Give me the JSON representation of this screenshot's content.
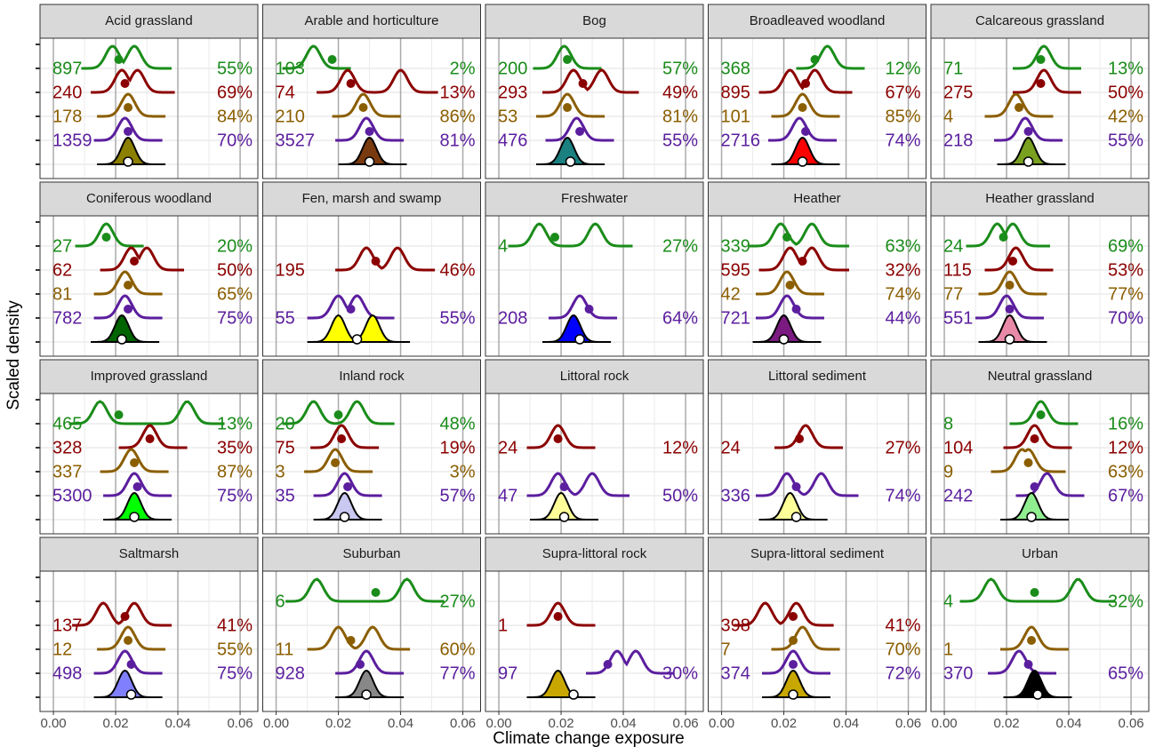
{
  "chart_data": {
    "type": "ridgeline",
    "x_label": "Climate change exposure",
    "y_label": "Scaled density",
    "xlim": [
      -0.0043,
      0.0657
    ],
    "xticks": [
      {
        "value": 0,
        "label": "0.00"
      },
      {
        "value": 0.02,
        "label": "0.02"
      },
      {
        "value": 0.04,
        "label": "0.04"
      },
      {
        "value": 0.06,
        "label": "0.06"
      }
    ],
    "row_colors": [
      "#1a8c1a",
      "#8b0000",
      "#8b5e00",
      "#5b1e9e"
    ],
    "panels": [
      {
        "title": "Acid grassland",
        "fill": "#8b8000",
        "ridges": [
          {
            "n": 897,
            "pct": "55%",
            "point": 0.021,
            "peaks": [
              0.019,
              0.026
            ]
          },
          {
            "n": 240,
            "pct": "69%",
            "point": 0.023,
            "peaks": [
              0.022,
              0.027
            ]
          },
          {
            "n": 178,
            "pct": "84%",
            "point": 0.024,
            "peaks": [
              0.024
            ]
          },
          {
            "n": 1359,
            "pct": "70%",
            "point": 0.024,
            "peaks": [
              0.023
            ]
          }
        ],
        "base": {
          "point": 0.024,
          "peaks": [
            0.024
          ]
        }
      },
      {
        "title": "Arable and horticulture",
        "fill": "#7a3a10",
        "ridges": [
          {
            "n": 103,
            "pct": "2%",
            "point": 0.018,
            "peaks": [
              0.012
            ]
          },
          {
            "n": 74,
            "pct": "13%",
            "point": 0.024,
            "peaks": [
              0.023,
              0.04
            ]
          },
          {
            "n": 210,
            "pct": "86%",
            "point": 0.028,
            "peaks": [
              0.028
            ]
          },
          {
            "n": 3527,
            "pct": "81%",
            "point": 0.03,
            "peaks": [
              0.029
            ]
          }
        ],
        "base": {
          "point": 0.03,
          "peaks": [
            0.03
          ]
        }
      },
      {
        "title": "Bog",
        "fill": "#1a8080",
        "ridges": [
          {
            "n": 200,
            "pct": "57%",
            "point": 0.022,
            "peaks": [
              0.021
            ]
          },
          {
            "n": 293,
            "pct": "49%",
            "point": 0.027,
            "peaks": [
              0.024,
              0.033
            ]
          },
          {
            "n": 53,
            "pct": "81%",
            "point": 0.022,
            "peaks": [
              0.022
            ]
          },
          {
            "n": 476,
            "pct": "55%",
            "point": 0.026,
            "peaks": [
              0.025
            ]
          }
        ],
        "base": {
          "point": 0.023,
          "peaks": [
            0.022
          ]
        }
      },
      {
        "title": "Broadleaved woodland",
        "fill": "#ff0000",
        "ridges": [
          {
            "n": 368,
            "pct": "12%",
            "point": 0.03,
            "peaks": [
              0.034
            ]
          },
          {
            "n": 895,
            "pct": "67%",
            "point": 0.027,
            "peaks": [
              0.022,
              0.03
            ]
          },
          {
            "n": 101,
            "pct": "85%",
            "point": 0.026,
            "peaks": [
              0.026
            ]
          },
          {
            "n": 2716,
            "pct": "74%",
            "point": 0.027,
            "peaks": [
              0.025
            ]
          }
        ],
        "base": {
          "point": 0.026,
          "peaks": [
            0.026
          ]
        }
      },
      {
        "title": "Calcareous grassland",
        "fill": "#7aa020",
        "ridges": [
          {
            "n": 71,
            "pct": "13%",
            "point": 0.031,
            "peaks": [
              0.032
            ]
          },
          {
            "n": 275,
            "pct": "50%",
            "point": 0.031,
            "peaks": [
              0.032
            ]
          },
          {
            "n": 4,
            "pct": "42%",
            "point": 0.024,
            "peaks": [
              0.023
            ]
          },
          {
            "n": 218,
            "pct": "55%",
            "point": 0.027,
            "peaks": [
              0.026
            ]
          }
        ],
        "base": {
          "point": 0.027,
          "peaks": [
            0.027
          ]
        }
      },
      {
        "title": "Coniferous woodland",
        "fill": "#006400",
        "ridges": [
          {
            "n": 27,
            "pct": "20%",
            "point": 0.017,
            "peaks": [
              0.017
            ]
          },
          {
            "n": 62,
            "pct": "50%",
            "point": 0.026,
            "peaks": [
              0.025,
              0.03
            ]
          },
          {
            "n": 81,
            "pct": "65%",
            "point": 0.024,
            "peaks": [
              0.023
            ]
          },
          {
            "n": 782,
            "pct": "75%",
            "point": 0.024,
            "peaks": [
              0.023
            ]
          }
        ],
        "base": {
          "point": 0.022,
          "peaks": [
            0.022
          ]
        }
      },
      {
        "title": "Fen, marsh and swamp",
        "fill": "#ffff00",
        "ridges": [
          null,
          {
            "n": 195,
            "pct": "46%",
            "point": 0.032,
            "peaks": [
              0.029,
              0.039
            ]
          },
          null,
          {
            "n": 55,
            "pct": "55%",
            "point": 0.024,
            "peaks": [
              0.02,
              0.026
            ]
          }
        ],
        "base": {
          "point": 0.026,
          "peaks": [
            0.02,
            0.031
          ]
        }
      },
      {
        "title": "Freshwater",
        "fill": "#0000ff",
        "ridges": [
          {
            "n": 4,
            "pct": "27%",
            "point": 0.018,
            "peaks": [
              0.013,
              0.031
            ]
          },
          null,
          null,
          {
            "n": 208,
            "pct": "64%",
            "point": 0.029,
            "peaks": [
              0.026
            ]
          }
        ],
        "base": {
          "point": 0.026,
          "peaks": [
            0.024
          ]
        }
      },
      {
        "title": "Heather",
        "fill": "#7b1a80",
        "ridges": [
          {
            "n": 339,
            "pct": "63%",
            "point": 0.021,
            "peaks": [
              0.019,
              0.029
            ]
          },
          {
            "n": 595,
            "pct": "32%",
            "point": 0.026,
            "peaks": [
              0.022,
              0.029
            ]
          },
          {
            "n": 42,
            "pct": "74%",
            "point": 0.022,
            "peaks": [
              0.021
            ]
          },
          {
            "n": 721,
            "pct": "44%",
            "point": 0.024,
            "peaks": [
              0.021
            ]
          }
        ],
        "base": {
          "point": 0.02,
          "peaks": [
            0.02
          ]
        }
      },
      {
        "title": "Heather grassland",
        "fill": "#e88aa8",
        "ridges": [
          {
            "n": 24,
            "pct": "69%",
            "point": 0.019,
            "peaks": [
              0.017,
              0.022
            ]
          },
          {
            "n": 115,
            "pct": "53%",
            "point": 0.022,
            "peaks": [
              0.023
            ]
          },
          {
            "n": 77,
            "pct": "77%",
            "point": 0.021,
            "peaks": [
              0.021
            ]
          },
          {
            "n": 551,
            "pct": "70%",
            "point": 0.021,
            "peaks": [
              0.02
            ]
          }
        ],
        "base": {
          "point": 0.021,
          "peaks": [
            0.021
          ]
        }
      },
      {
        "title": "Improved grassland",
        "fill": "#00ff00",
        "ridges": [
          {
            "n": 465,
            "pct": "13%",
            "point": 0.021,
            "peaks": [
              0.015,
              0.043
            ]
          },
          {
            "n": 328,
            "pct": "35%",
            "point": 0.031,
            "peaks": [
              0.031
            ]
          },
          {
            "n": 337,
            "pct": "87%",
            "point": 0.026,
            "peaks": [
              0.025
            ]
          },
          {
            "n": 5300,
            "pct": "75%",
            "point": 0.027,
            "peaks": [
              0.026
            ]
          }
        ],
        "base": {
          "point": 0.026,
          "peaks": [
            0.026
          ]
        }
      },
      {
        "title": "Inland rock",
        "fill": "#c8c8f0",
        "ridges": [
          {
            "n": 20,
            "pct": "48%",
            "point": 0.02,
            "peaks": [
              0.012,
              0.026
            ]
          },
          {
            "n": 75,
            "pct": "19%",
            "point": 0.021,
            "peaks": [
              0.021
            ]
          },
          {
            "n": 3,
            "pct": "3%",
            "point": 0.019,
            "peaks": [
              0.019
            ]
          },
          {
            "n": 35,
            "pct": "57%",
            "point": 0.023,
            "peaks": [
              0.022
            ]
          }
        ],
        "base": {
          "point": 0.022,
          "peaks": [
            0.022
          ]
        }
      },
      {
        "title": "Littoral rock",
        "fill": "#ffff99",
        "ridges": [
          null,
          {
            "n": 24,
            "pct": "12%",
            "point": 0.019,
            "peaks": [
              0.019
            ]
          },
          null,
          {
            "n": 47,
            "pct": "50%",
            "point": 0.021,
            "peaks": [
              0.019,
              0.03
            ]
          }
        ],
        "base": {
          "point": 0.021,
          "peaks": [
            0.02
          ]
        }
      },
      {
        "title": "Littoral sediment",
        "fill": "#ffff99",
        "ridges": [
          null,
          {
            "n": 24,
            "pct": "27%",
            "point": 0.025,
            "peaks": [
              0.027
            ]
          },
          null,
          {
            "n": 336,
            "pct": "74%",
            "point": 0.024,
            "peaks": [
              0.021,
              0.032
            ]
          }
        ],
        "base": {
          "point": 0.024,
          "peaks": [
            0.022
          ]
        }
      },
      {
        "title": "Neutral grassland",
        "fill": "#90ee90",
        "ridges": [
          {
            "n": 8,
            "pct": "16%",
            "point": 0.031,
            "peaks": [
              0.031
            ]
          },
          {
            "n": 104,
            "pct": "12%",
            "point": 0.029,
            "peaks": [
              0.029
            ]
          },
          {
            "n": 9,
            "pct": "63%",
            "point": 0.027,
            "peaks": [
              0.025,
              0.027
            ]
          },
          {
            "n": 242,
            "pct": "67%",
            "point": 0.029,
            "peaks": [
              0.033
            ]
          }
        ],
        "base": {
          "point": 0.028,
          "peaks": [
            0.028
          ]
        }
      },
      {
        "title": "Saltmarsh",
        "fill": "#8080ff",
        "ridges": [
          null,
          {
            "n": 137,
            "pct": "41%",
            "point": 0.023,
            "peaks": [
              0.016,
              0.026
            ]
          },
          {
            "n": 12,
            "pct": "55%",
            "point": 0.024,
            "peaks": [
              0.024
            ]
          },
          {
            "n": 498,
            "pct": "75%",
            "point": 0.025,
            "peaks": [
              0.023
            ]
          }
        ],
        "base": {
          "point": 0.025,
          "peaks": [
            0.023
          ]
        }
      },
      {
        "title": "Suburban",
        "fill": "#888888",
        "ridges": [
          {
            "n": 6,
            "pct": "27%",
            "point": 0.032,
            "peaks": [
              0.013,
              0.042
            ]
          },
          null,
          {
            "n": 11,
            "pct": "60%",
            "point": 0.024,
            "peaks": [
              0.02,
              0.031
            ]
          },
          {
            "n": 928,
            "pct": "77%",
            "point": 0.027,
            "peaks": [
              0.029
            ]
          }
        ],
        "base": {
          "point": 0.029,
          "peaks": [
            0.029
          ]
        }
      },
      {
        "title": "Supra-littoral rock",
        "fill": "#c8a800",
        "ridges": [
          null,
          {
            "n": 1,
            "point": 0.019,
            "peaks": [
              0.019
            ]
          },
          null,
          {
            "n": 97,
            "pct": "30%",
            "point": 0.035,
            "peaks": [
              0.038,
              0.044
            ]
          }
        ],
        "base": {
          "point": 0.024,
          "peaks": [
            0.019
          ]
        }
      },
      {
        "title": "Supra-littoral sediment",
        "fill": "#c8a800",
        "ridges": [
          null,
          {
            "n": 398,
            "pct": "41%",
            "point": 0.023,
            "peaks": [
              0.014,
              0.024
            ]
          },
          {
            "n": 7,
            "pct": "70%",
            "point": 0.023,
            "peaks": [
              0.026
            ]
          },
          {
            "n": 374,
            "pct": "72%",
            "point": 0.023,
            "peaks": [
              0.023
            ]
          }
        ],
        "base": {
          "point": 0.023,
          "peaks": [
            0.023
          ]
        }
      },
      {
        "title": "Urban",
        "fill": "#000000",
        "ridges": [
          {
            "n": 4,
            "pct": "32%",
            "point": 0.029,
            "peaks": [
              0.015,
              0.043
            ]
          },
          null,
          {
            "n": 1,
            "point": 0.028,
            "peaks": [
              0.028
            ]
          },
          {
            "n": 370,
            "pct": "65%",
            "point": 0.027,
            "peaks": [
              0.024
            ]
          }
        ],
        "base": {
          "point": 0.03,
          "peaks": [
            0.029
          ]
        }
      }
    ]
  }
}
